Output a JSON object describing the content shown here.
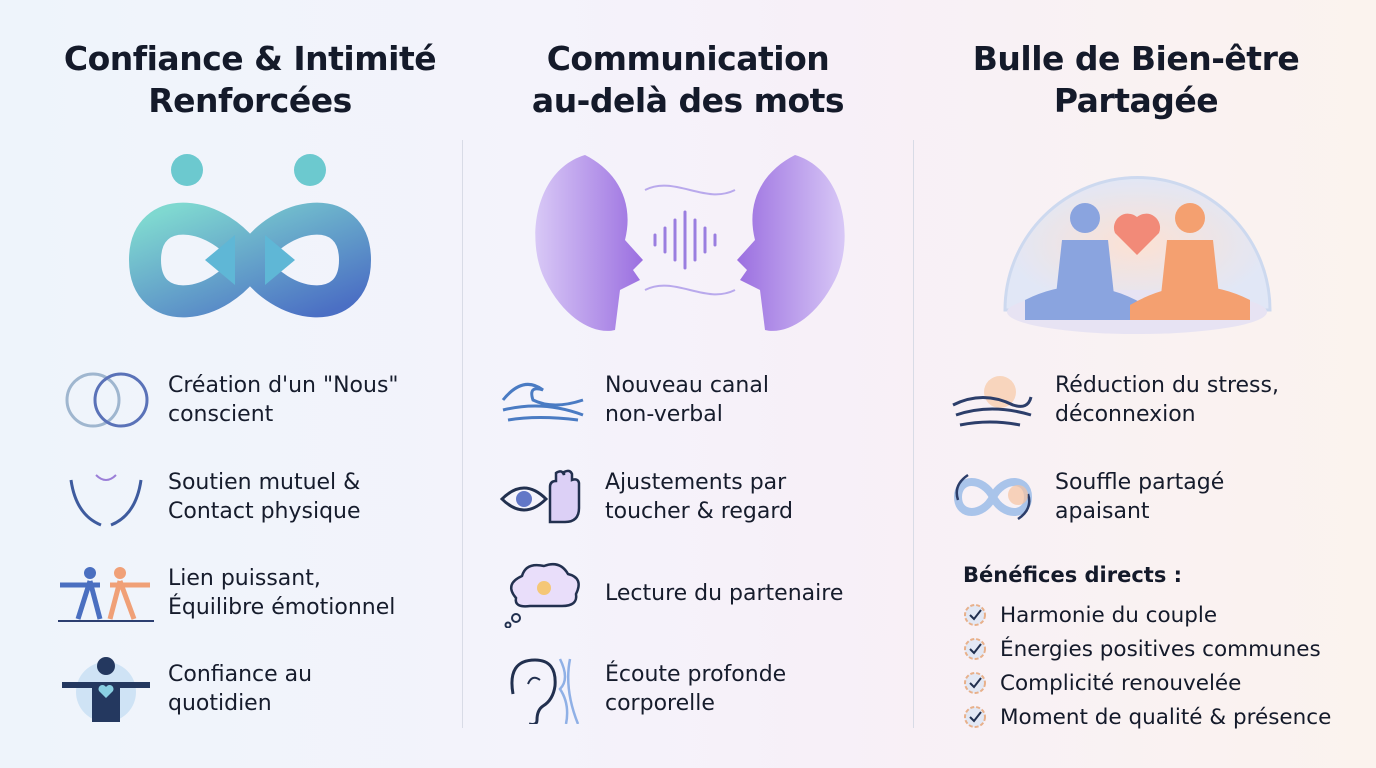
{
  "columns": [
    {
      "title_line1": "Confiance & Intimité",
      "title_line2": "Renforcées",
      "hero_icon": "infinity-couple-icon",
      "items": [
        {
          "icon": "overlapping-circles-icon",
          "line1": "Création d'un \"Nous\"",
          "line2": "conscient"
        },
        {
          "icon": "supporting-hands-icon",
          "line1": "Soutien mutuel &",
          "line2": "Contact physique"
        },
        {
          "icon": "balance-pose-icon",
          "line1": "Lien puissant,",
          "line2": "Équilibre émotionnel"
        },
        {
          "icon": "person-heart-icon",
          "line1": "Confiance au",
          "line2": "quotidien"
        }
      ]
    },
    {
      "title_line1": "Communication",
      "title_line2": "au-delà des mots",
      "hero_icon": "faces-soundwave-icon",
      "items": [
        {
          "icon": "wave-icon",
          "line1": "Nouveau canal",
          "line2": "non-verbal"
        },
        {
          "icon": "eye-hand-icon",
          "line1": "Ajustements par",
          "line2": "toucher & regard"
        },
        {
          "icon": "thought-bulb-icon",
          "line1": "Lecture du partenaire",
          "line2": ""
        },
        {
          "icon": "ear-body-icon",
          "line1": "Écoute profonde",
          "line2": "corporelle"
        }
      ]
    },
    {
      "title_line1": "Bulle de Bien-être",
      "title_line2": "Partagée",
      "hero_icon": "meditation-bubble-icon",
      "items": [
        {
          "icon": "calm-wave-sun-icon",
          "line1": "Réduction du stress,",
          "line2": "déconnexion"
        },
        {
          "icon": "breath-cycle-icon",
          "line1": "Souffle partagé",
          "line2": "apaisant"
        }
      ],
      "benefits_title": "Bénéfices directs :",
      "benefits": [
        "Harmonie du couple",
        "Énergies positives communes",
        "Complicité renouvelée",
        "Moment de qualité & présence"
      ]
    }
  ],
  "colors": {
    "teal": "#5fc9c9",
    "blue": "#4d78c8",
    "purple": "#a47be0",
    "orange": "#f6a06a",
    "text": "#141a2a"
  }
}
